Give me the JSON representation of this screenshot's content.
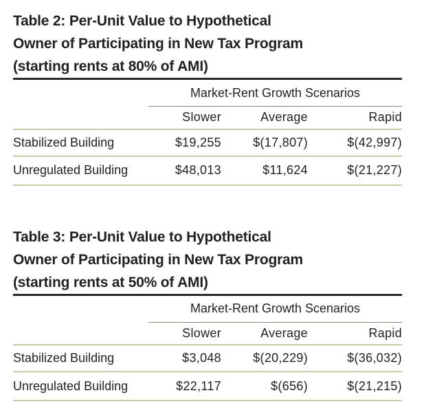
{
  "page": {
    "background": "#ffffff",
    "text_color": "#231f20",
    "rule_colors": {
      "heavy_top_rule": "#2a2828",
      "spanner_underline": "#85857b",
      "row_separator": "#c9c9a9"
    }
  },
  "tables": [
    {
      "title_lines": [
        "Table 2: Per-Unit Value to Hypothetical",
        "Owner of Participating in New Tax Program",
        "(starting rents at 80% of AMI)"
      ],
      "spanner": "Market-Rent Growth Scenarios",
      "columns": [
        "Slower",
        "Average",
        "Rapid"
      ],
      "rows": [
        {
          "label": "Stabilized Building",
          "values": [
            "$19,255",
            "$(17,807)",
            "$(42,997)"
          ]
        },
        {
          "label": "Unregulated Building",
          "values": [
            "$48,013",
            "$11,624",
            "$(21,227)"
          ]
        }
      ]
    },
    {
      "title_lines": [
        "Table 3: Per-Unit Value to Hypothetical",
        "Owner of Participating in New Tax Program",
        "(starting rents at 50% of AMI)"
      ],
      "spanner": "Market-Rent Growth Scenarios",
      "columns": [
        "Slower",
        "Average",
        "Rapid"
      ],
      "rows": [
        {
          "label": "Stabilized Building",
          "values": [
            "$3,048",
            "$(20,229)",
            "$(36,032)"
          ]
        },
        {
          "label": "Unregulated Building",
          "values": [
            "$22,117",
            "$(656)",
            "$(21,215)"
          ]
        }
      ]
    }
  ],
  "chart_data": [
    {
      "type": "table",
      "title": "Table 2: Per-Unit Value to Hypothetical Owner of Participating in New Tax Program (starting rents at 80% of AMI)",
      "column_group": "Market-Rent Growth Scenarios",
      "columns": [
        "Slower",
        "Average",
        "Rapid"
      ],
      "rows": [
        {
          "label": "Stabilized Building",
          "values": [
            19255,
            -17807,
            -42997
          ]
        },
        {
          "label": "Unregulated Building",
          "values": [
            48013,
            11624,
            -21227
          ]
        }
      ]
    },
    {
      "type": "table",
      "title": "Table 3: Per-Unit Value to Hypothetical Owner of Participating in New Tax Program (starting rents at 50% of AMI)",
      "column_group": "Market-Rent Growth Scenarios",
      "columns": [
        "Slower",
        "Average",
        "Rapid"
      ],
      "rows": [
        {
          "label": "Stabilized Building",
          "values": [
            3048,
            -20229,
            -36032
          ]
        },
        {
          "label": "Unregulated Building",
          "values": [
            22117,
            -656,
            -21215
          ]
        }
      ]
    }
  ]
}
